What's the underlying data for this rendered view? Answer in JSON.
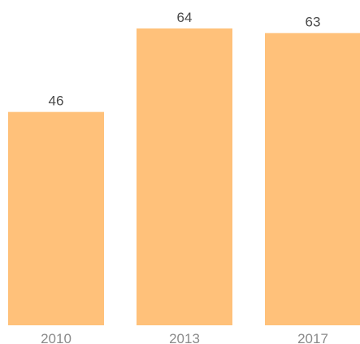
{
  "chart_data": {
    "type": "bar",
    "title": "",
    "xlabel": "",
    "ylabel": "",
    "categories": [
      "2010",
      "2013",
      "2017"
    ],
    "values": [
      46,
      64,
      63
    ],
    "data_labels": [
      "46",
      "64",
      "63"
    ],
    "ylim": [
      0,
      64
    ],
    "grid": false,
    "legend": "none",
    "bar_color": "#ffc17a"
  }
}
